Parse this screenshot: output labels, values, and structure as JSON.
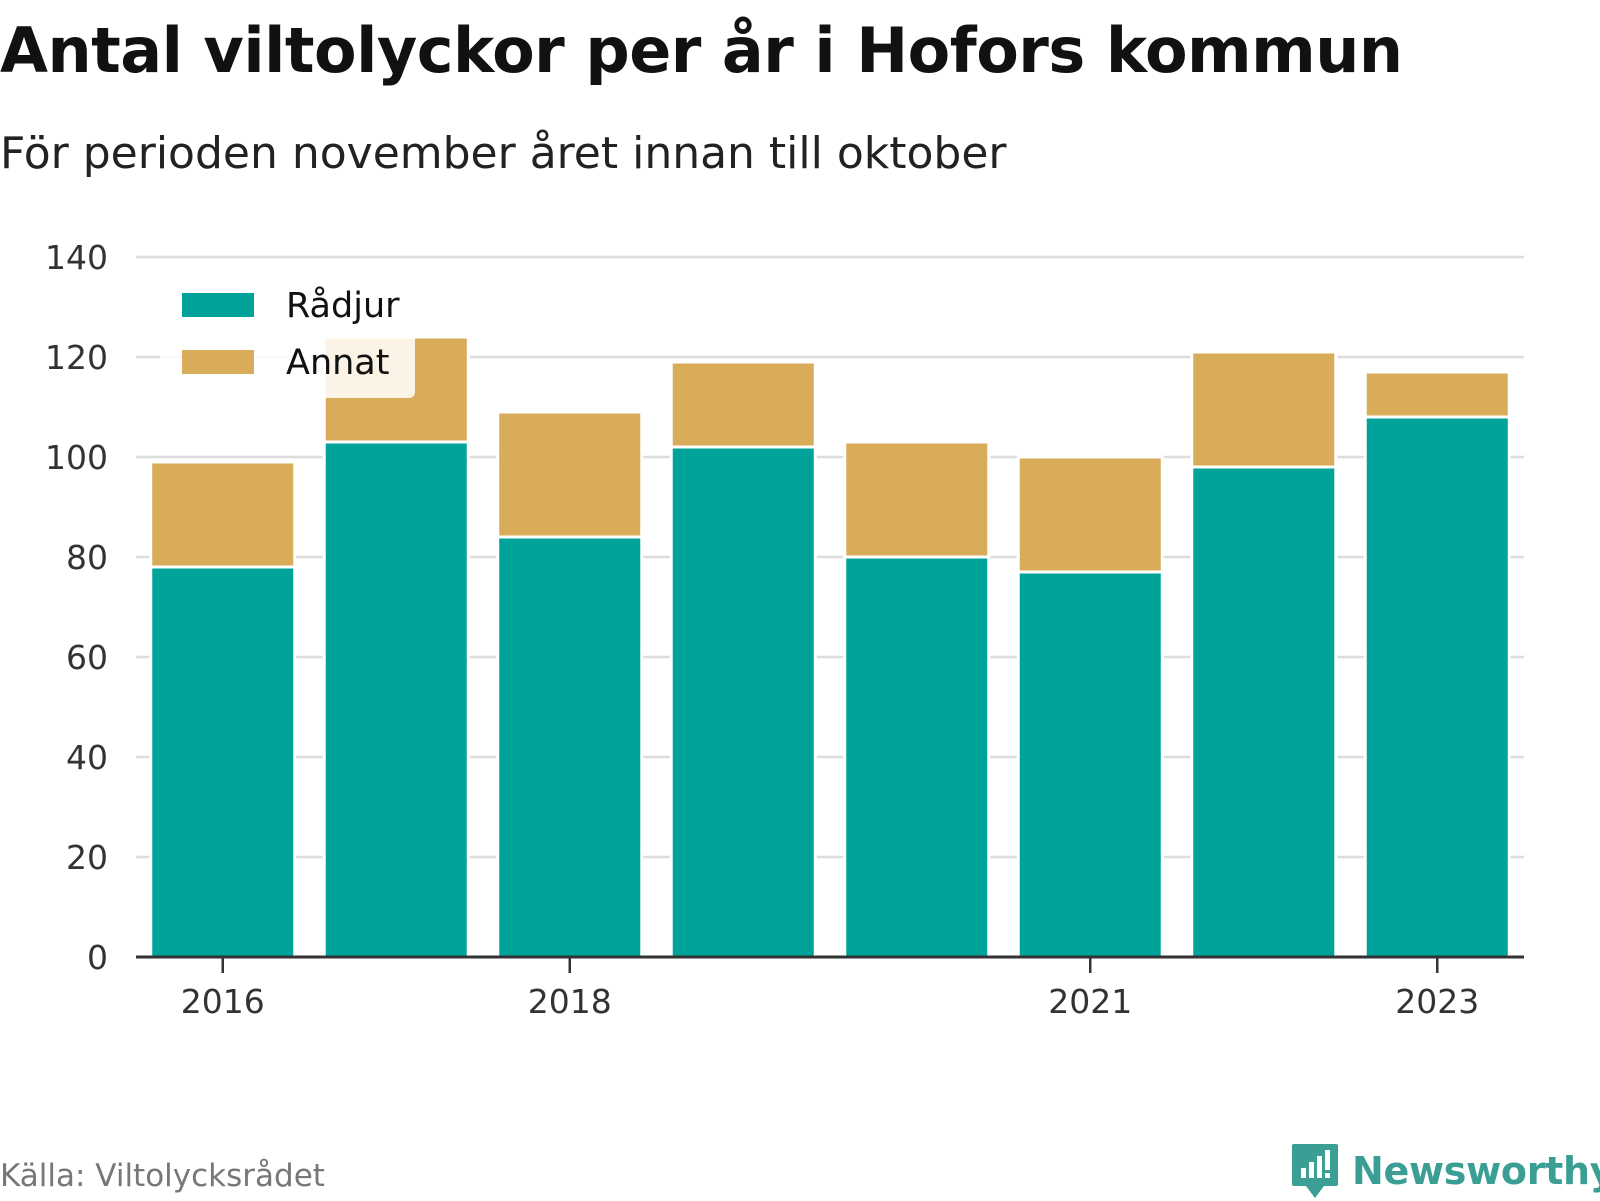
{
  "title": "Antal viltolyckor per år i Hofors kommun",
  "subtitle": "För perioden november året innan till oktober",
  "source": "Källa: Viltolycksrådet",
  "brand": "Newsworthy",
  "colors": {
    "radjur": "#00a39a",
    "annat": "#d9ac5a",
    "brand": "#3a9e94",
    "grid": "#dddddd",
    "axis": "#333333"
  },
  "chart_data": {
    "type": "bar",
    "stacked": true,
    "categories": [
      "2016",
      "2017",
      "2018",
      "2019",
      "2020",
      "2021",
      "2022",
      "2023"
    ],
    "x_tick_labels": [
      "2016",
      "",
      "2018",
      "",
      "",
      "2021",
      "",
      "2023"
    ],
    "series": [
      {
        "name": "Rådjur",
        "values": [
          78,
          103,
          84,
          102,
          80,
          77,
          98,
          108
        ]
      },
      {
        "name": "Annat",
        "values": [
          21,
          21,
          25,
          17,
          23,
          23,
          23,
          9
        ]
      }
    ],
    "ylim": [
      0,
      140
    ],
    "yticks": [
      0,
      20,
      40,
      60,
      80,
      100,
      120,
      140
    ],
    "grid": true,
    "legend": "top-left"
  }
}
